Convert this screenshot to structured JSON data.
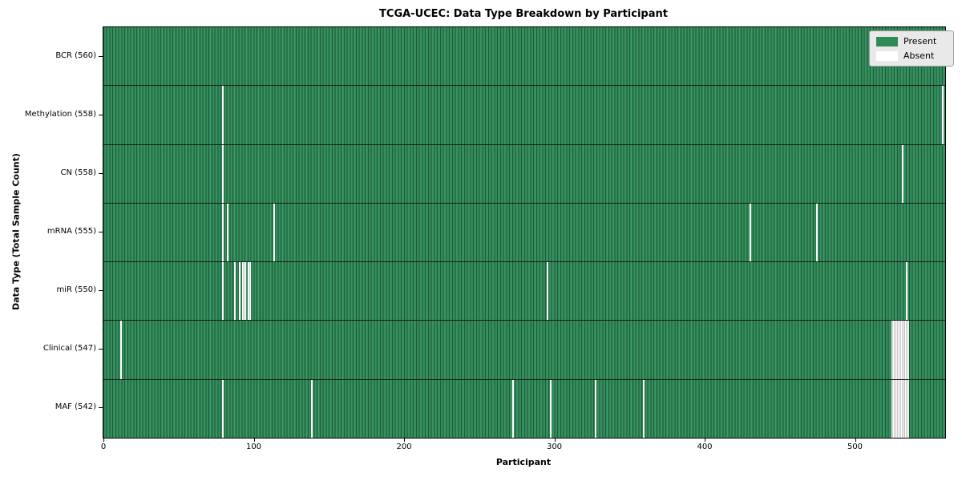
{
  "colors": {
    "present": "#2e8b57",
    "present_dark": "#1d5c39",
    "present_light": "#46966c",
    "absent": "#ffffff",
    "cluster_edge": "#c9c9c9",
    "legend_bg": "#e9e9e9",
    "spine": "#000000"
  },
  "chart_data": {
    "type": "heatmap",
    "title": "TCGA-UCEC: Data Type Breakdown by Participant",
    "xlabel": "Participant",
    "ylabel": "Data Type (Total Sample Count)",
    "xlim": [
      0,
      560
    ],
    "x_ticks": [
      0,
      100,
      200,
      300,
      400,
      500
    ],
    "total_participants": 560,
    "grid": false,
    "legend": [
      "Present",
      "Absent"
    ],
    "legend_position": "upper right",
    "rows": [
      {
        "name": "BCR",
        "label": "BCR (560)",
        "present_count": 560,
        "absent_participants": []
      },
      {
        "name": "Methylation",
        "label": "Methylation (558)",
        "present_count": 558,
        "absent_participants": [
          79,
          558
        ]
      },
      {
        "name": "CN",
        "label": "CN (558)",
        "present_count": 558,
        "absent_participants": [
          79,
          531
        ]
      },
      {
        "name": "mRNA",
        "label": "mRNA (555)",
        "present_count": 555,
        "absent_participants": [
          79,
          82,
          113,
          430,
          474
        ]
      },
      {
        "name": "miR",
        "label": "miR (550)",
        "present_count": 550,
        "absent_participants": [
          79,
          87,
          90,
          92,
          93,
          94,
          96,
          97,
          295,
          534
        ]
      },
      {
        "name": "Clinical",
        "label": "Clinical (547)",
        "present_count": 547,
        "absent_participants": [
          11,
          524,
          525,
          526,
          527,
          528,
          529,
          530,
          531,
          532,
          533,
          534,
          535
        ]
      },
      {
        "name": "MAF",
        "label": "MAF (542)",
        "present_count": 542,
        "absent_participants": [
          79,
          138,
          272,
          297,
          327,
          359,
          524,
          525,
          526,
          527,
          528,
          529,
          530,
          531,
          532,
          533,
          534,
          535
        ]
      }
    ]
  }
}
